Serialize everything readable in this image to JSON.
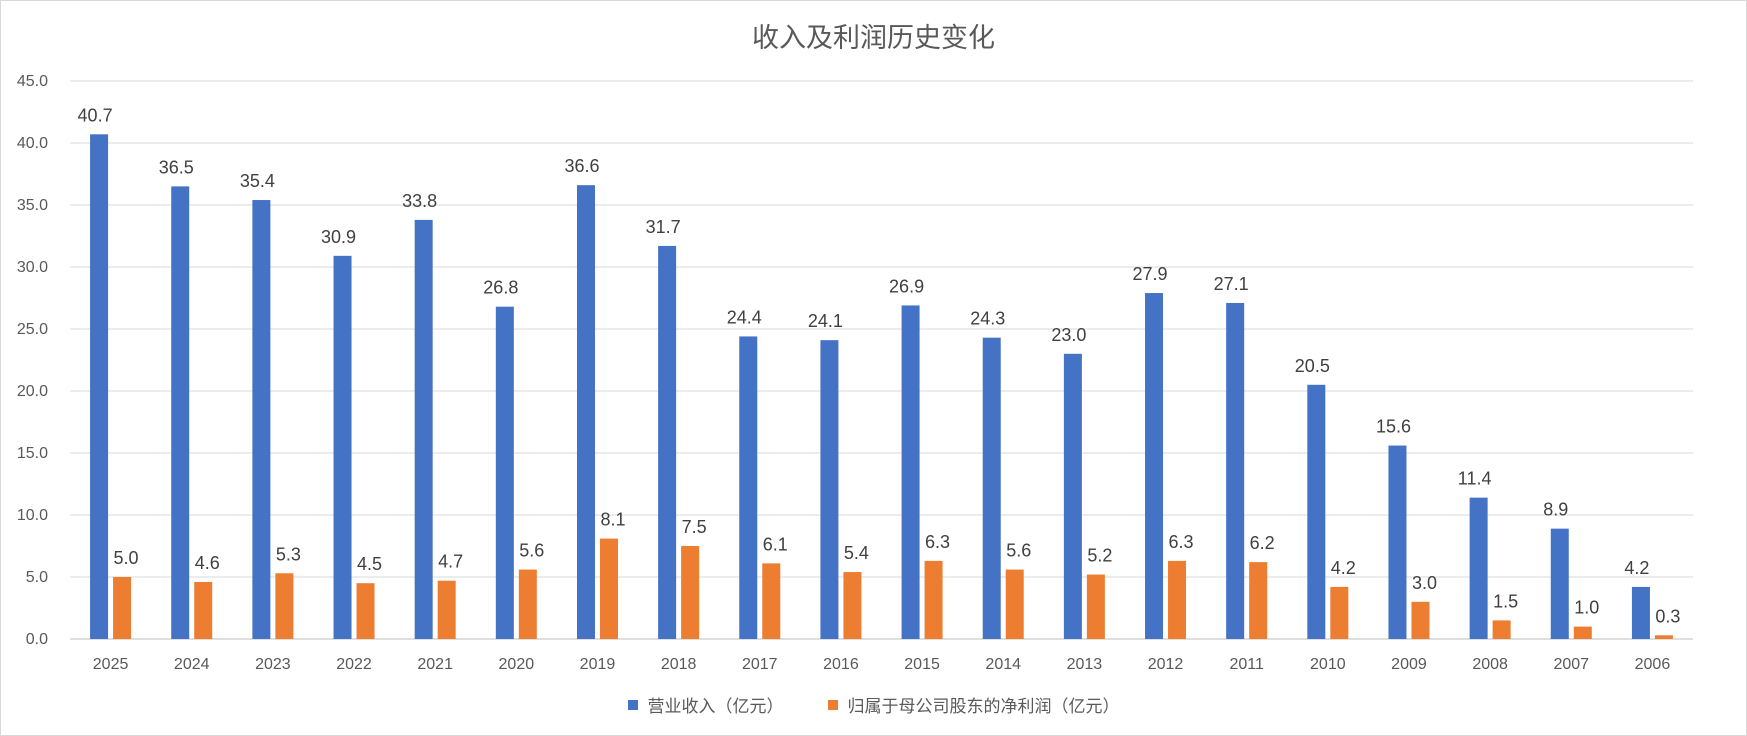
{
  "chart_data": {
    "type": "bar",
    "title": "收入及利润历史变化",
    "categories": [
      "2025",
      "2024",
      "2023",
      "2022",
      "2021",
      "2020",
      "2019",
      "2018",
      "2017",
      "2016",
      "2015",
      "2014",
      "2013",
      "2012",
      "2011",
      "2010",
      "2009",
      "2008",
      "2007",
      "2006"
    ],
    "series": [
      {
        "name": "营业收入（亿元）",
        "color": "#4472C4",
        "values": [
          40.7,
          36.5,
          35.4,
          30.9,
          33.8,
          26.8,
          36.6,
          31.7,
          24.4,
          24.1,
          26.9,
          24.3,
          23.0,
          27.9,
          27.1,
          20.5,
          15.6,
          11.4,
          8.9,
          4.2
        ]
      },
      {
        "name": "归属于母公司股东的净利润（亿元）",
        "color": "#ED7D31",
        "values": [
          5.0,
          4.6,
          5.3,
          4.5,
          4.7,
          5.6,
          8.1,
          7.5,
          6.1,
          5.4,
          6.3,
          5.6,
          5.2,
          6.3,
          6.2,
          4.2,
          3.0,
          1.5,
          1.0,
          0.3
        ]
      }
    ],
    "ylim": [
      0,
      45
    ],
    "yticks": [
      "0.0",
      "5.0",
      "10.0",
      "15.0",
      "20.0",
      "25.0",
      "30.0",
      "35.0",
      "40.0",
      "45.0"
    ],
    "grid": true,
    "legend_position": "bottom"
  }
}
